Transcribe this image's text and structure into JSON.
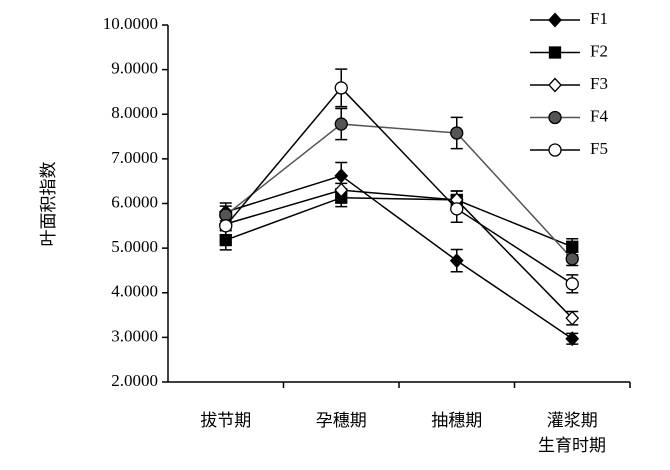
{
  "chart_data": {
    "type": "line",
    "x_label": "生育时期",
    "y_label": "叶面积指数",
    "categories": [
      "拔节期",
      "孕穗期",
      "抽穗期",
      "灌浆期"
    ],
    "ylim": [
      2,
      10
    ],
    "yticks": [
      {
        "value": 2,
        "label": "2.0000"
      },
      {
        "value": 3,
        "label": "3.0000"
      },
      {
        "value": 4,
        "label": "4.0000"
      },
      {
        "value": 5,
        "label": "5.0000"
      },
      {
        "value": 6,
        "label": "6.0000"
      },
      {
        "value": 7,
        "label": "7.0000"
      },
      {
        "value": 8,
        "label": "8.0000"
      },
      {
        "value": 9,
        "label": "9.0000"
      },
      {
        "value": 10,
        "label": "10.0000"
      }
    ],
    "legend": "top-right",
    "series": [
      {
        "name": "F1",
        "color": "#000000",
        "marker": "diamond",
        "marker_fill": "#000000",
        "values": [
          5.81,
          6.62,
          4.72,
          2.97
        ],
        "errors": [
          0.2,
          0.3,
          0.25,
          0.12
        ]
      },
      {
        "name": "F2",
        "color": "#000000",
        "marker": "square",
        "marker_fill": "#000000",
        "values": [
          5.18,
          6.13,
          6.08,
          5.03
        ],
        "errors": [
          0.22,
          0.2,
          0.2,
          0.18
        ]
      },
      {
        "name": "F3",
        "color": "#000000",
        "marker": "diamond",
        "marker_fill": "#ffffff",
        "values": [
          5.54,
          6.3,
          6.08,
          3.43
        ],
        "errors": [
          0.15,
          0.15,
          0.2,
          0.15
        ]
      },
      {
        "name": "F4",
        "color": "#555555",
        "marker": "circle",
        "marker_fill": "#555555",
        "values": [
          5.74,
          7.78,
          7.58,
          4.76
        ],
        "errors": [
          0.2,
          0.35,
          0.35,
          0.15
        ]
      },
      {
        "name": "F5",
        "color": "#000000",
        "marker": "circle",
        "marker_fill": "#ffffff",
        "values": [
          5.5,
          8.59,
          5.88,
          4.2
        ],
        "errors": [
          0.22,
          0.42,
          0.3,
          0.2
        ]
      }
    ]
  }
}
